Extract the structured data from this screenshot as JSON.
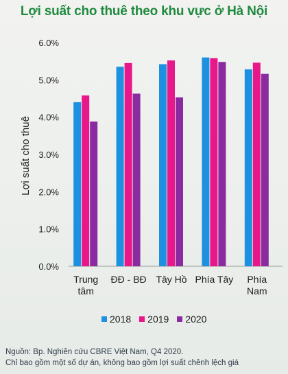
{
  "title": "Lợi suất cho thuê theo khu vực ở Hà Nội",
  "source": {
    "line1": "Nguồn: Bp. Nghiên cứu CBRE Việt Nam, Q4 2020.",
    "line2": "Chỉ bao gồm một số dự án, không bao gồm lợi suất chênh lệch giá"
  },
  "colors": {
    "2018": "#1e90e0",
    "2019": "#e8178a",
    "2020": "#8a2ca0"
  },
  "chart_data": {
    "type": "bar",
    "title": "Lợi suất cho thuê theo khu vực ở Hà Nội",
    "ylabel": "Lợi suất cho thuê",
    "xlabel": "",
    "ylim": [
      0,
      6
    ],
    "yticks": [
      "0.0%",
      "1.0%",
      "2.0%",
      "3.0%",
      "4.0%",
      "5.0%",
      "6.0%"
    ],
    "categories": [
      [
        "Trung",
        "tâm"
      ],
      [
        "ĐĐ - BĐ"
      ],
      [
        "Tây Hồ"
      ],
      [
        "Phía Tây"
      ],
      [
        "Phía",
        "Nam"
      ]
    ],
    "series": [
      {
        "name": "2018",
        "values": [
          4.4,
          5.35,
          5.42,
          5.6,
          5.28
        ]
      },
      {
        "name": "2019",
        "values": [
          4.58,
          5.45,
          5.52,
          5.58,
          5.46
        ]
      },
      {
        "name": "2020",
        "values": [
          3.88,
          4.63,
          4.53,
          5.48,
          5.16
        ]
      }
    ],
    "grid": false,
    "legend_position": "bottom"
  }
}
